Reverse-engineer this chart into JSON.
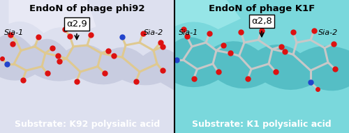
{
  "figsize": [
    5.0,
    1.91
  ],
  "dpi": 100,
  "left_panel": {
    "title": "EndoN of phage phi92",
    "substrate": "Substrate: K92 polysialic acid",
    "label_sia1": "Sia-1",
    "label_sia2": "Sia-2",
    "label_linkage": "α2,9",
    "bg_color": "#c8cce0",
    "surface_color": "#dde0ef",
    "surface_highlight": "#eeeef8",
    "molecule_color": "#dfc990",
    "red_atom": "#dd1111",
    "blue_atom": "#2244cc"
  },
  "right_panel": {
    "title": "EndoN of phage K1F",
    "substrate": "Substrate: K1 polysialic acid",
    "label_sia1": "Sia-1",
    "label_sia2": "Sia-2",
    "label_linkage": "α2,8",
    "bg_color": "#55bec5",
    "surface_color": "#7ad8dc",
    "surface_highlight": "#aaeef0",
    "molecule_color": "#c8c8c8",
    "red_atom": "#dd1111",
    "blue_atom": "#2244cc"
  },
  "title_fontsize": 9.5,
  "label_fontsize": 8,
  "substrate_fontsize": 9,
  "linkage_fontsize": 9.5
}
